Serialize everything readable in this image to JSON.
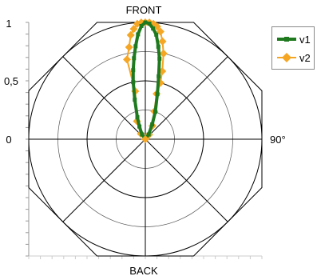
{
  "chart_data": {
    "type": "polar-line",
    "labels": {
      "top": "FRONT",
      "bottom": "BACK",
      "right": "90°"
    },
    "radial_ticks": [
      "1",
      "0,5",
      "0"
    ],
    "rlim": [
      0,
      1
    ],
    "angle_unit": "degrees",
    "grid": true,
    "legend_position": "right",
    "series": [
      {
        "name": "v1",
        "color": "#1f7a1f",
        "marker": "square",
        "points": [
          {
            "a": -35,
            "r": 0.05
          },
          {
            "a": -25,
            "r": 0.12
          },
          {
            "a": -20,
            "r": 0.2
          },
          {
            "a": -15,
            "r": 0.35
          },
          {
            "a": -12,
            "r": 0.5
          },
          {
            "a": -10,
            "r": 0.6
          },
          {
            "a": -8,
            "r": 0.7
          },
          {
            "a": -6,
            "r": 0.8
          },
          {
            "a": -4,
            "r": 0.9
          },
          {
            "a": -2,
            "r": 0.97
          },
          {
            "a": 0,
            "r": 1.0
          },
          {
            "a": 2,
            "r": 0.99
          },
          {
            "a": 4,
            "r": 0.95
          },
          {
            "a": 6,
            "r": 0.9
          },
          {
            "a": 8,
            "r": 0.8
          },
          {
            "a": 10,
            "r": 0.7
          },
          {
            "a": 12,
            "r": 0.55
          },
          {
            "a": 15,
            "r": 0.4
          },
          {
            "a": 20,
            "r": 0.25
          },
          {
            "a": 25,
            "r": 0.14
          },
          {
            "a": 35,
            "r": 0.05
          }
        ]
      },
      {
        "name": "v2",
        "color": "#f5a623",
        "marker": "diamond",
        "points": [
          {
            "a": -40,
            "r": 0.06
          },
          {
            "a": -25,
            "r": 0.17
          },
          {
            "a": -12,
            "r": 0.42
          },
          {
            "a": -13,
            "r": 0.7
          },
          {
            "a": -10,
            "r": 0.8
          },
          {
            "a": -8,
            "r": 0.9
          },
          {
            "a": -6,
            "r": 0.95
          },
          {
            "a": -4,
            "r": 0.99
          },
          {
            "a": -2,
            "r": 1.0
          },
          {
            "a": 0,
            "r": 1.0
          },
          {
            "a": 2,
            "r": 1.0
          },
          {
            "a": 4,
            "r": 0.99
          },
          {
            "a": 6,
            "r": 0.97
          },
          {
            "a": 8,
            "r": 0.93
          },
          {
            "a": 10,
            "r": 0.85
          },
          {
            "a": 12,
            "r": 0.75
          },
          {
            "a": 14,
            "r": 0.6
          },
          {
            "a": 15,
            "r": 0.5
          },
          {
            "a": 14,
            "r": 0.4
          },
          {
            "a": 18,
            "r": 0.25
          },
          {
            "a": 28,
            "r": 0.13
          },
          {
            "a": 40,
            "r": 0.05
          }
        ]
      }
    ]
  }
}
